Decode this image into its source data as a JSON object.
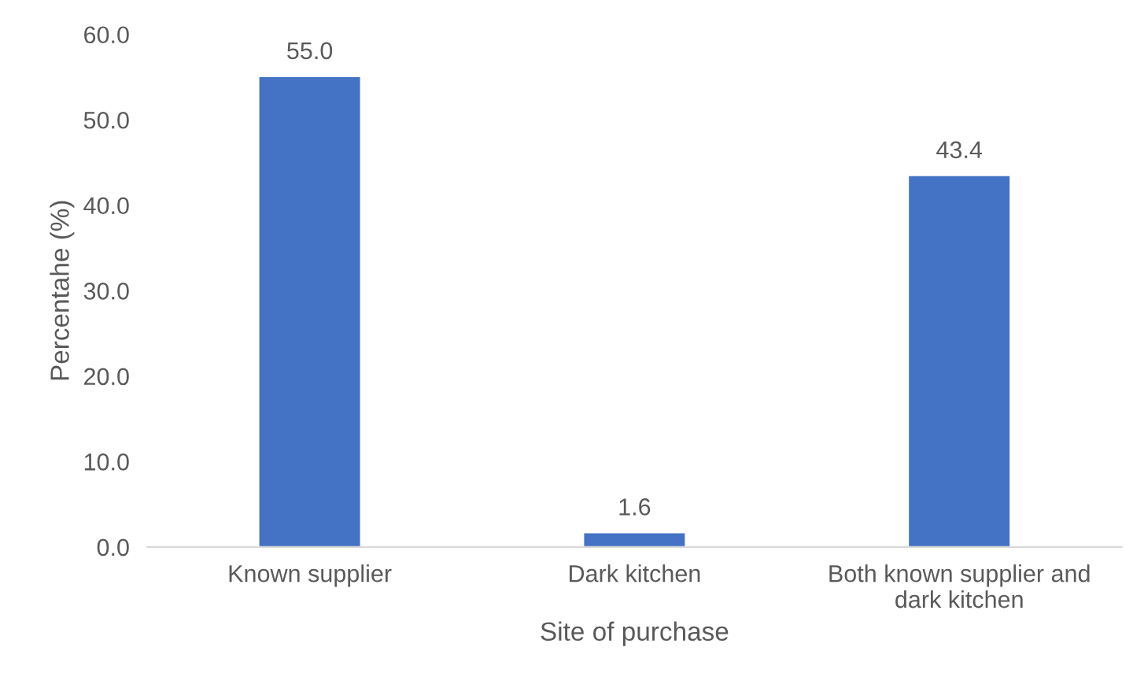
{
  "chart_data": {
    "type": "bar",
    "xlabel": "Site of purchase",
    "ylabel": "Percentahe (%)",
    "categories": [
      "Known supplier",
      "Dark kitchen",
      "Both known supplier and\ndark kitchen"
    ],
    "values": [
      55.0,
      1.6,
      43.4
    ],
    "color": "#4472c4",
    "ylim": [
      0,
      60
    ],
    "yticks": [
      {
        "value": 0,
        "label": "0.0"
      },
      {
        "value": 10,
        "label": "10.0"
      },
      {
        "value": 20,
        "label": "20.0"
      },
      {
        "value": 30,
        "label": "30.0"
      },
      {
        "value": 40,
        "label": "40.0"
      },
      {
        "value": 50,
        "label": "50.0"
      },
      {
        "value": 60,
        "label": "60.0"
      }
    ],
    "value_labels": [
      "55.0",
      "1.6",
      "43.4"
    ],
    "grid": false,
    "legend": false
  }
}
